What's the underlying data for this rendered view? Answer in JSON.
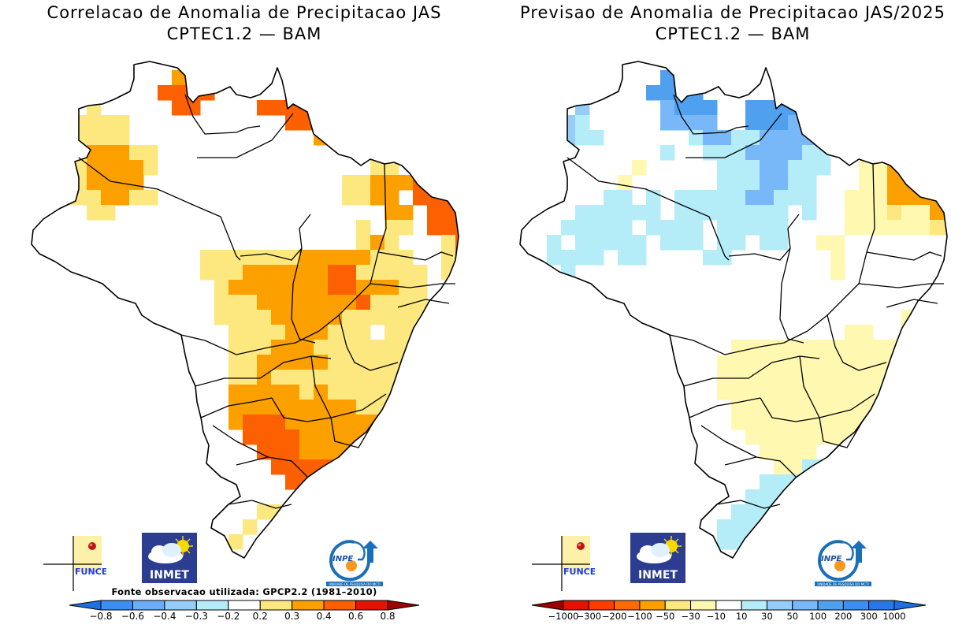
{
  "panels": [
    {
      "id": "correlation",
      "title_line1": "Correlacao de Anomalia de Precipitacao JAS",
      "title_line2": "CPTEC1.2 — BAM",
      "source_note": "Fonte observacao utilizada: GPCP2.2 (1981–2010)",
      "colorbar": {
        "labels": [
          "−0.8",
          "−0.6",
          "−0.4",
          "−0.3",
          "−0.2",
          "0.2",
          "0.3",
          "0.4",
          "0.6",
          "0.8"
        ],
        "colors": [
          "#1e6fe0",
          "#3c8ef0",
          "#6aacf5",
          "#96ccf8",
          "#b4ecf8",
          "#ffffff",
          "#fde880",
          "#fca000",
          "#fc6000",
          "#e01400",
          "#a00000"
        ]
      },
      "fill_palette": {
        "w": "#ffffff",
        "y": "#fde880",
        "o": "#fca000",
        "r": "#fc6000",
        "d": "#e01400"
      },
      "logos": [
        "FUNCEME",
        "INMET",
        "INPE"
      ],
      "inpe_caption": "UNIDADE DE PESQUISA DO MCTI"
    },
    {
      "id": "forecast",
      "title_line1": "Previsao de Anomalia de Precipitacao JAS/2025",
      "title_line2": "CPTEC1.2 — BAM",
      "source_note": "",
      "colorbar": {
        "labels": [
          "−1000",
          "−300",
          "−200",
          "−100",
          "−50",
          "−30",
          "−10",
          "10",
          "30",
          "50",
          "100",
          "200",
          "300",
          "1000"
        ],
        "colors": [
          "#a00000",
          "#e01400",
          "#fc3c00",
          "#fc6a00",
          "#fca000",
          "#fde880",
          "#fef8b0",
          "#ffffff",
          "#b4ecf8",
          "#96ccf8",
          "#78b8f8",
          "#50a0f0",
          "#3c8ef0",
          "#2878e8",
          "#1e6fe0"
        ]
      },
      "fill_palette": {
        "w": "#ffffff",
        "c": "#b4ecf8",
        "l": "#96ccf8",
        "m": "#78b8f8",
        "b": "#50a0f0",
        "p": "#fef8b0",
        "y": "#fde880",
        "o": "#fca000",
        "r": "#fc6000"
      },
      "logos": [
        "FUNCEME",
        "INMET",
        "INPE"
      ],
      "inpe_caption": "UNIDADE DE PESQUISA DO MCTI"
    }
  ],
  "grid": {
    "correlation": [
      "..............................",
      "..........oo....................",
      ".........rrrr..........y.........",
      "....y.....rr....rrrrrdrr..y.......",
      "...yyyy...........rrrrrr..yy.......",
      "...yyyy.............o..yy.yy.......",
      "..yyoooyy...............yyy.oooo...",
      "..yyooooy...............yy.oorrdd.r",
      "..yyoooo..............yyooorrrddr.r",
      "..yyyooyy.............yyoo.rrrrddrrr",
      "....yy...................oo.rrrrrrrr",
      ".......................y.yy.rrrrrrrr",
      ".......................yoy...yrrrrrr",
      "............yyyyyyyoooooyyy..yrrrrr",
      "............yyyoooooorryyyyy.yrrrrr",
      ".............yooooooorroooyy.wyorrr",
      ".............yyyoooooooryyyy.wyorr",
      ".............yyyyoooooyyyyyyyyooor",
      "..............yyyyoooyyy.yyyyyoooy",
      "..............yyyoooyyyyyyyyyyyooy",
      "..............yyoooooyyyyyyyyyooyy",
      "..............yyoyyyyyyyyy.yyyyooy",
      "..............oooooyoyyyyyyyyyyooy",
      "..............oooooooooyyyyyyoooo",
      "..............orrroooooooooyyoooo",
      "...............rrrrooooooooooooor",
      "................rrroooooooooooorr",
      ".................rrrrrrrrooooor",
      "..................rrrrrrrrr",
      "...................orrrrrrr",
      "................yy.yyooooy",
      "...............y.....yy",
      "..............y"
    ],
    "forecast": [
      "..............................",
      "..........bb....................",
      ".........bbbb..........b.........",
      "....l.....mbbb..bbbbbbbbb.........",
      "...lc.....mmmm..bbbmmmmbb..........",
      "...lcc......cmmccmmmmmccc..........",
      "..........c..cccmmmmcc...pyyy......",
      "........p.....cccmmccc..ppoooo.....",
      ".......p......cccmmcc...ppoorooo...",
      "......cc.c.cccccmmccc..pppooooooo..",
      "....cccccc.cccccccc.c..pppyppoooo..",
      "...ccccc.cccc.ccccc....ppppppyyoo..",
      "..c.ccccc.ccc.cc.cc..pp........ypp.",
      "..cccc.cc....cc.......p.........c",
      "...c..................p.........l",
      "................................c",
      "...............................c",
      "...........................ppp",
      ".......................pp..pppp",
      "...............pppppppppppppppp",
      "..............pppppppppppppppp",
      "..............ppppppppppppppp",
      "..............ppppppppppppppp",
      "...............pppppppppppppp",
      "...............pppppppppppp",
      "................ppppppppp.p",
      ".................pppp..pp",
      "..................ppcccc",
      ".................cccccccc",
      "................cccccccl",
      "...............cccccccl",
      "..............cccccc",
      "..............ccc"
    ]
  }
}
